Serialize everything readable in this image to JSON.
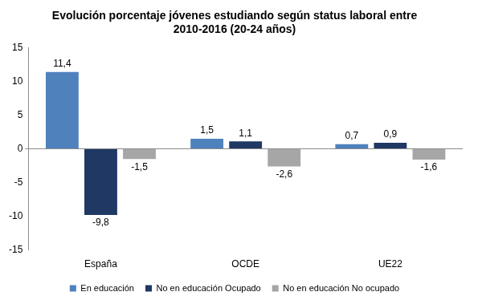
{
  "chart_data": {
    "type": "bar",
    "title": [
      "Evolución porcentaje jóvenes estudiando según status laboral entre",
      "2010-2016 (20-24 años)"
    ],
    "categories": [
      "España",
      "OCDE",
      "UE22"
    ],
    "series": [
      {
        "name": "En educación",
        "color": "#4f81bd",
        "values": [
          11.4,
          1.5,
          0.7
        ],
        "value_labels": [
          "11,4",
          "1,5",
          "0,7"
        ]
      },
      {
        "name": "No en educación Ocupado",
        "color": "#1f3864",
        "values": [
          -9.8,
          1.1,
          0.9
        ],
        "value_labels": [
          "-9,8",
          "1,1",
          "0,9"
        ]
      },
      {
        "name": "No en educación No ocupado",
        "color": "#a6a6a6",
        "values": [
          -1.5,
          -2.6,
          -1.6
        ],
        "value_labels": [
          "-1,5",
          "-2,6",
          "-1,6"
        ]
      }
    ],
    "ylim": [
      -15,
      15
    ],
    "yticks": [
      -15,
      -10,
      -5,
      0,
      5,
      10,
      15
    ],
    "grid": false,
    "legend": "bottom",
    "data_labels": true
  }
}
